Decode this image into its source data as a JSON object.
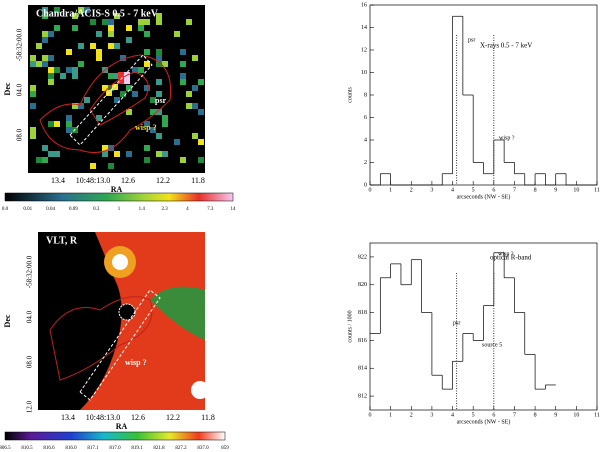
{
  "chart_data": [
    {
      "type": "histogram",
      "title": "X-rays   0.5 - 7 keV",
      "xlabel": "arcseconds (NW - SE)",
      "ylabel": "counts",
      "bins": [
        0,
        0.5,
        1,
        1.5,
        2,
        2.5,
        3,
        3.5,
        4,
        4.5,
        5,
        5.5,
        6,
        6.5,
        7,
        7.5,
        8,
        8.5,
        9,
        9.5,
        10,
        10.5,
        11
      ],
      "values": [
        0,
        1,
        0,
        0,
        0,
        0,
        0,
        1,
        15,
        8,
        2,
        1,
        4,
        2,
        1,
        0,
        1,
        0,
        1,
        0,
        0,
        0
      ],
      "xlim": [
        0,
        11
      ],
      "ylim": [
        0,
        16
      ],
      "xticks": [
        0,
        1,
        2,
        3,
        4,
        5,
        6,
        7,
        8,
        9,
        10,
        11
      ],
      "yticks": [
        0,
        2,
        4,
        6,
        8,
        10,
        12,
        14,
        16
      ],
      "markers": [
        4.2,
        6
      ],
      "annotations": [
        "psr",
        "wisp ?"
      ],
      "color": "#000000"
    },
    {
      "type": "histogram",
      "title": "optical   R-band",
      "xlabel": "arcseconds (NW - SE)",
      "ylabel": "counts / 1000",
      "bins": [
        0,
        0.5,
        1,
        1.5,
        2,
        2.5,
        3,
        3.5,
        4,
        4.5,
        5,
        5.5,
        6,
        6.5,
        7,
        7.5,
        8,
        8.5,
        9
      ],
      "values": [
        816.5,
        820.5,
        821.5,
        820,
        821.8,
        818,
        813.5,
        812.5,
        814.5,
        816.5,
        816,
        818.5,
        822.3,
        820.5,
        818,
        815,
        812.5,
        812.8
      ],
      "xlim": [
        0,
        11
      ],
      "ylim": [
        811,
        823
      ],
      "xticks": [
        0,
        1,
        2,
        3,
        4,
        5,
        6,
        7,
        8,
        9,
        10,
        11
      ],
      "yticks": [
        812,
        814,
        816,
        818,
        820,
        822
      ],
      "markers": [
        4.2,
        6
      ],
      "annotations": [
        "psr",
        "wisp ?",
        "source 5"
      ],
      "color": "#000000"
    }
  ],
  "images": [
    {
      "title": "Chandra/ACIS-S    0.5 - 7 keV",
      "xlabel": "RA",
      "ylabel": "Dec",
      "xticks": [
        "13.4",
        "10:48:13.0",
        "12.6",
        "12.2",
        "11.8"
      ],
      "yticks": [
        "-58:32:00.0",
        "04.0",
        "08.0"
      ],
      "annotations": [
        "psr",
        "wisp ?"
      ],
      "colorbar": [
        "0.0",
        "0.01",
        "0.04",
        "0.09",
        "0.3",
        "1",
        "1.4",
        "2.3",
        "4",
        "7.3",
        "14"
      ]
    },
    {
      "title": "VLT, R",
      "xlabel": "RA",
      "ylabel": "Dec",
      "xticks": [
        "13.4",
        "10:48:13.0",
        "12.6",
        "12.2",
        "11.8"
      ],
      "yticks": [
        "-58:32:00.0",
        "04.0",
        "08.0",
        "12.0"
      ],
      "annotations": [
        "wisp ?"
      ],
      "colorbar": [
        "806.5",
        "810.5",
        "816.6",
        "816.0",
        "817.1",
        "817.0",
        "819.1",
        "821.8",
        "827.2",
        "837.0",
        "859"
      ]
    }
  ]
}
